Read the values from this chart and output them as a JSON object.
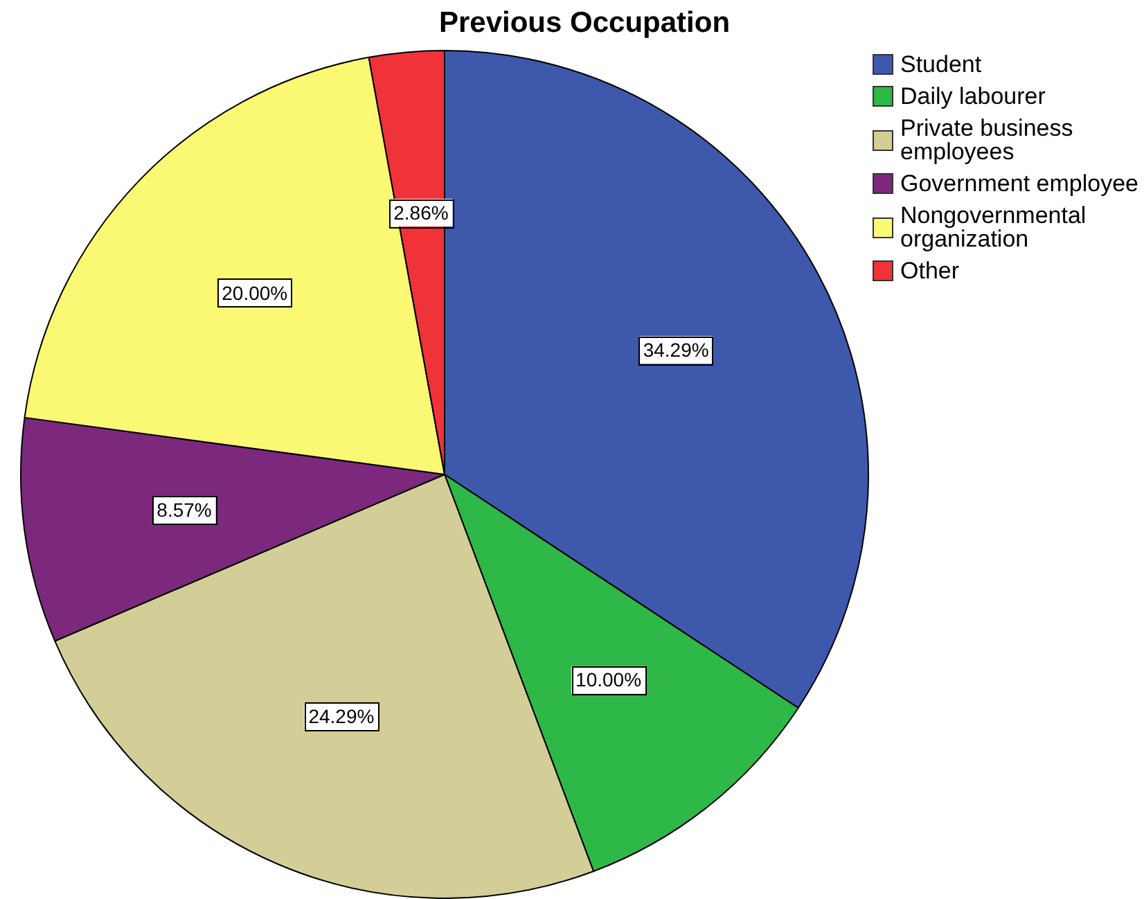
{
  "chart_data": {
    "type": "pie",
    "title": "Previous Occupation",
    "categories": [
      "Student",
      "Daily labourer",
      "Private business employees",
      "Government employee",
      "Nongovernmental organization",
      "Other"
    ],
    "values": [
      34.29,
      10.0,
      24.29,
      8.57,
      20.0,
      2.86
    ],
    "colors": [
      "#3e58ac",
      "#2eb848",
      "#d3ce97",
      "#7c287d",
      "#fbf873",
      "#ef3338"
    ],
    "value_labels": [
      "34.29%",
      "10.00%",
      "24.29%",
      "8.57%",
      "20.00%",
      "2.86%"
    ],
    "legend": "top right"
  }
}
